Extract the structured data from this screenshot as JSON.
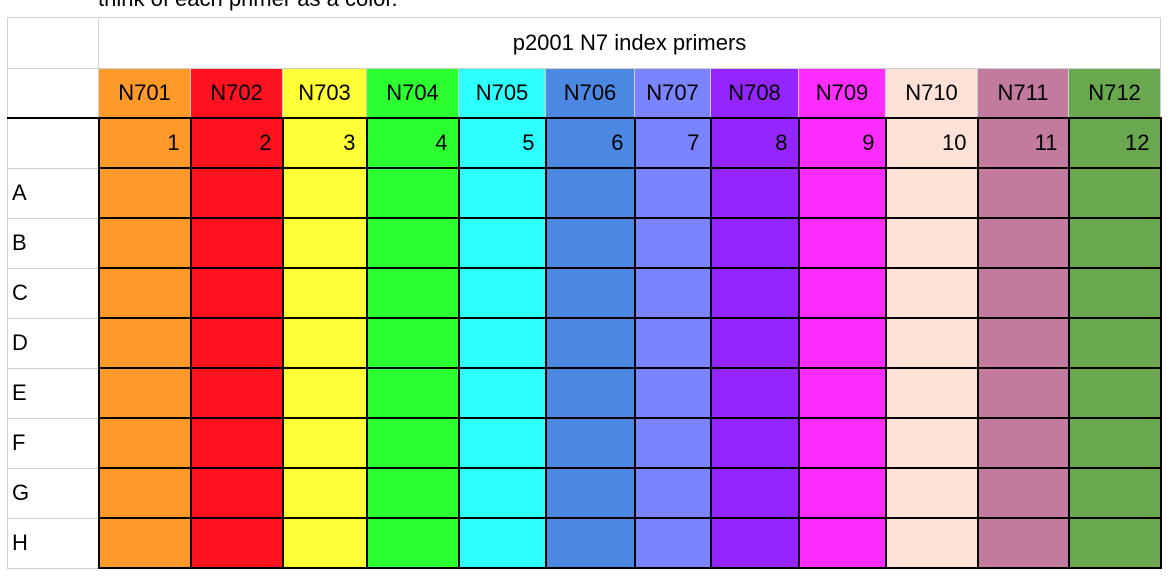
{
  "caption": "think of each primer as a color.",
  "table_title": "p2001 N7 index primers",
  "primers": [
    {
      "name": "N701",
      "column": "1",
      "color": "#ff9a2a"
    },
    {
      "name": "N702",
      "column": "2",
      "color": "#ff121f"
    },
    {
      "name": "N703",
      "column": "3",
      "color": "#ffff38"
    },
    {
      "name": "N704",
      "column": "4",
      "color": "#2bff2f"
    },
    {
      "name": "N705",
      "column": "5",
      "color": "#2dffff"
    },
    {
      "name": "N706",
      "column": "6",
      "color": "#4c88e2"
    },
    {
      "name": "N707",
      "column": "7",
      "color": "#7b84ff"
    },
    {
      "name": "N708",
      "column": "8",
      "color": "#9525ff"
    },
    {
      "name": "N709",
      "column": "9",
      "color": "#ff2cff"
    },
    {
      "name": "N710",
      "column": "10",
      "color": "#fbe1d6"
    },
    {
      "name": "N711",
      "column": "11",
      "color": "#c27b9f"
    },
    {
      "name": "N712",
      "column": "12",
      "color": "#6aa84f"
    }
  ],
  "rows": [
    "A",
    "B",
    "C",
    "D",
    "E",
    "F",
    "G",
    "H"
  ]
}
